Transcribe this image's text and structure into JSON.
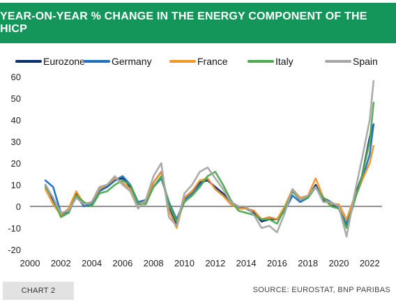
{
  "header": {
    "title": "YEAR-ON-YEAR % CHANGE IN THE ENERGY COMPONENT OF THE HICP"
  },
  "footer": {
    "chart_label": "CHART 2",
    "source": "SOURCE: EUROSTAT, BNP PARIBAS"
  },
  "chart_data": {
    "type": "line",
    "title": "YEAR-ON-YEAR % CHANGE IN THE ENERGY COMPONENT OF THE HICP",
    "xlabel": "",
    "ylabel": "",
    "xlim": [
      2000,
      2022.8
    ],
    "ylim": [
      -20,
      60
    ],
    "x_ticks": [
      2000,
      2002,
      2004,
      2006,
      2008,
      2010,
      2012,
      2014,
      2016,
      2018,
      2020,
      2022
    ],
    "y_ticks": [
      60,
      50,
      40,
      30,
      20,
      10,
      0,
      -10,
      -20
    ],
    "grid": false,
    "legend_position": "top",
    "x": [
      2001.0,
      2001.5,
      2002.0,
      2002.5,
      2003.0,
      2003.5,
      2004.0,
      2004.5,
      2005.0,
      2005.5,
      2006.0,
      2006.5,
      2007.0,
      2007.5,
      2008.0,
      2008.5,
      2009.0,
      2009.5,
      2010.0,
      2010.5,
      2011.0,
      2011.5,
      2012.0,
      2012.5,
      2013.0,
      2013.5,
      2014.0,
      2014.5,
      2015.0,
      2015.5,
      2016.0,
      2016.5,
      2017.0,
      2017.5,
      2018.0,
      2018.5,
      2019.0,
      2019.5,
      2020.0,
      2020.5,
      2021.0,
      2021.5,
      2022.0,
      2022.25
    ],
    "series": [
      {
        "name": "Eurozone",
        "color": "#0a2d6e",
        "values": [
          10,
          3,
          -4,
          -2,
          6,
          1,
          2,
          8,
          9,
          12,
          13,
          9,
          1,
          2,
          11,
          16,
          0,
          -8,
          4,
          7,
          11,
          12,
          9,
          6,
          2,
          0,
          -1,
          -3,
          -7,
          -6,
          -6,
          -2,
          7,
          3,
          4,
          10,
          3,
          1,
          -1,
          -9,
          4,
          14,
          32,
          38
        ]
      },
      {
        "name": "Germany",
        "color": "#1f6fbe",
        "values": [
          12,
          9,
          -3,
          -3,
          5,
          0,
          1,
          7,
          9,
          12,
          14,
          10,
          2,
          3,
          9,
          13,
          2,
          -6,
          3,
          6,
          10,
          13,
          8,
          5,
          2,
          -1,
          -1,
          -2,
          -6,
          -5,
          -6,
          -2,
          5,
          2,
          4,
          9,
          4,
          2,
          -1,
          -8,
          3,
          12,
          24,
          38
        ]
      },
      {
        "name": "France",
        "color": "#f0962a",
        "values": [
          8,
          1,
          -4,
          -1,
          7,
          1,
          2,
          8,
          10,
          13,
          11,
          8,
          1,
          2,
          11,
          16,
          -2,
          -10,
          4,
          7,
          12,
          13,
          8,
          5,
          1,
          -1,
          -1,
          -2,
          -6,
          -5,
          -6,
          0,
          8,
          4,
          5,
          13,
          4,
          1,
          1,
          -6,
          4,
          12,
          20,
          28
        ]
      },
      {
        "name": "Italy",
        "color": "#4caa50",
        "values": [
          9,
          4,
          -5,
          -3,
          5,
          2,
          0,
          6,
          7,
          10,
          12,
          10,
          1,
          1,
          9,
          14,
          1,
          -7,
          2,
          5,
          9,
          14,
          16,
          10,
          3,
          -2,
          -3,
          -4,
          -6,
          -6,
          -8,
          -1,
          7,
          3,
          4,
          9,
          4,
          0,
          -1,
          -10,
          2,
          14,
          30,
          48
        ]
      },
      {
        "name": "Spain",
        "color": "#a6a6a6",
        "values": [
          10,
          4,
          -3,
          -2,
          4,
          1,
          2,
          9,
          10,
          14,
          10,
          7,
          -1,
          3,
          14,
          20,
          -5,
          -9,
          6,
          10,
          16,
          18,
          13,
          8,
          2,
          0,
          0,
          -4,
          -10,
          -9,
          -12,
          -3,
          8,
          3,
          5,
          9,
          2,
          2,
          0,
          -14,
          5,
          22,
          40,
          58
        ]
      }
    ]
  }
}
